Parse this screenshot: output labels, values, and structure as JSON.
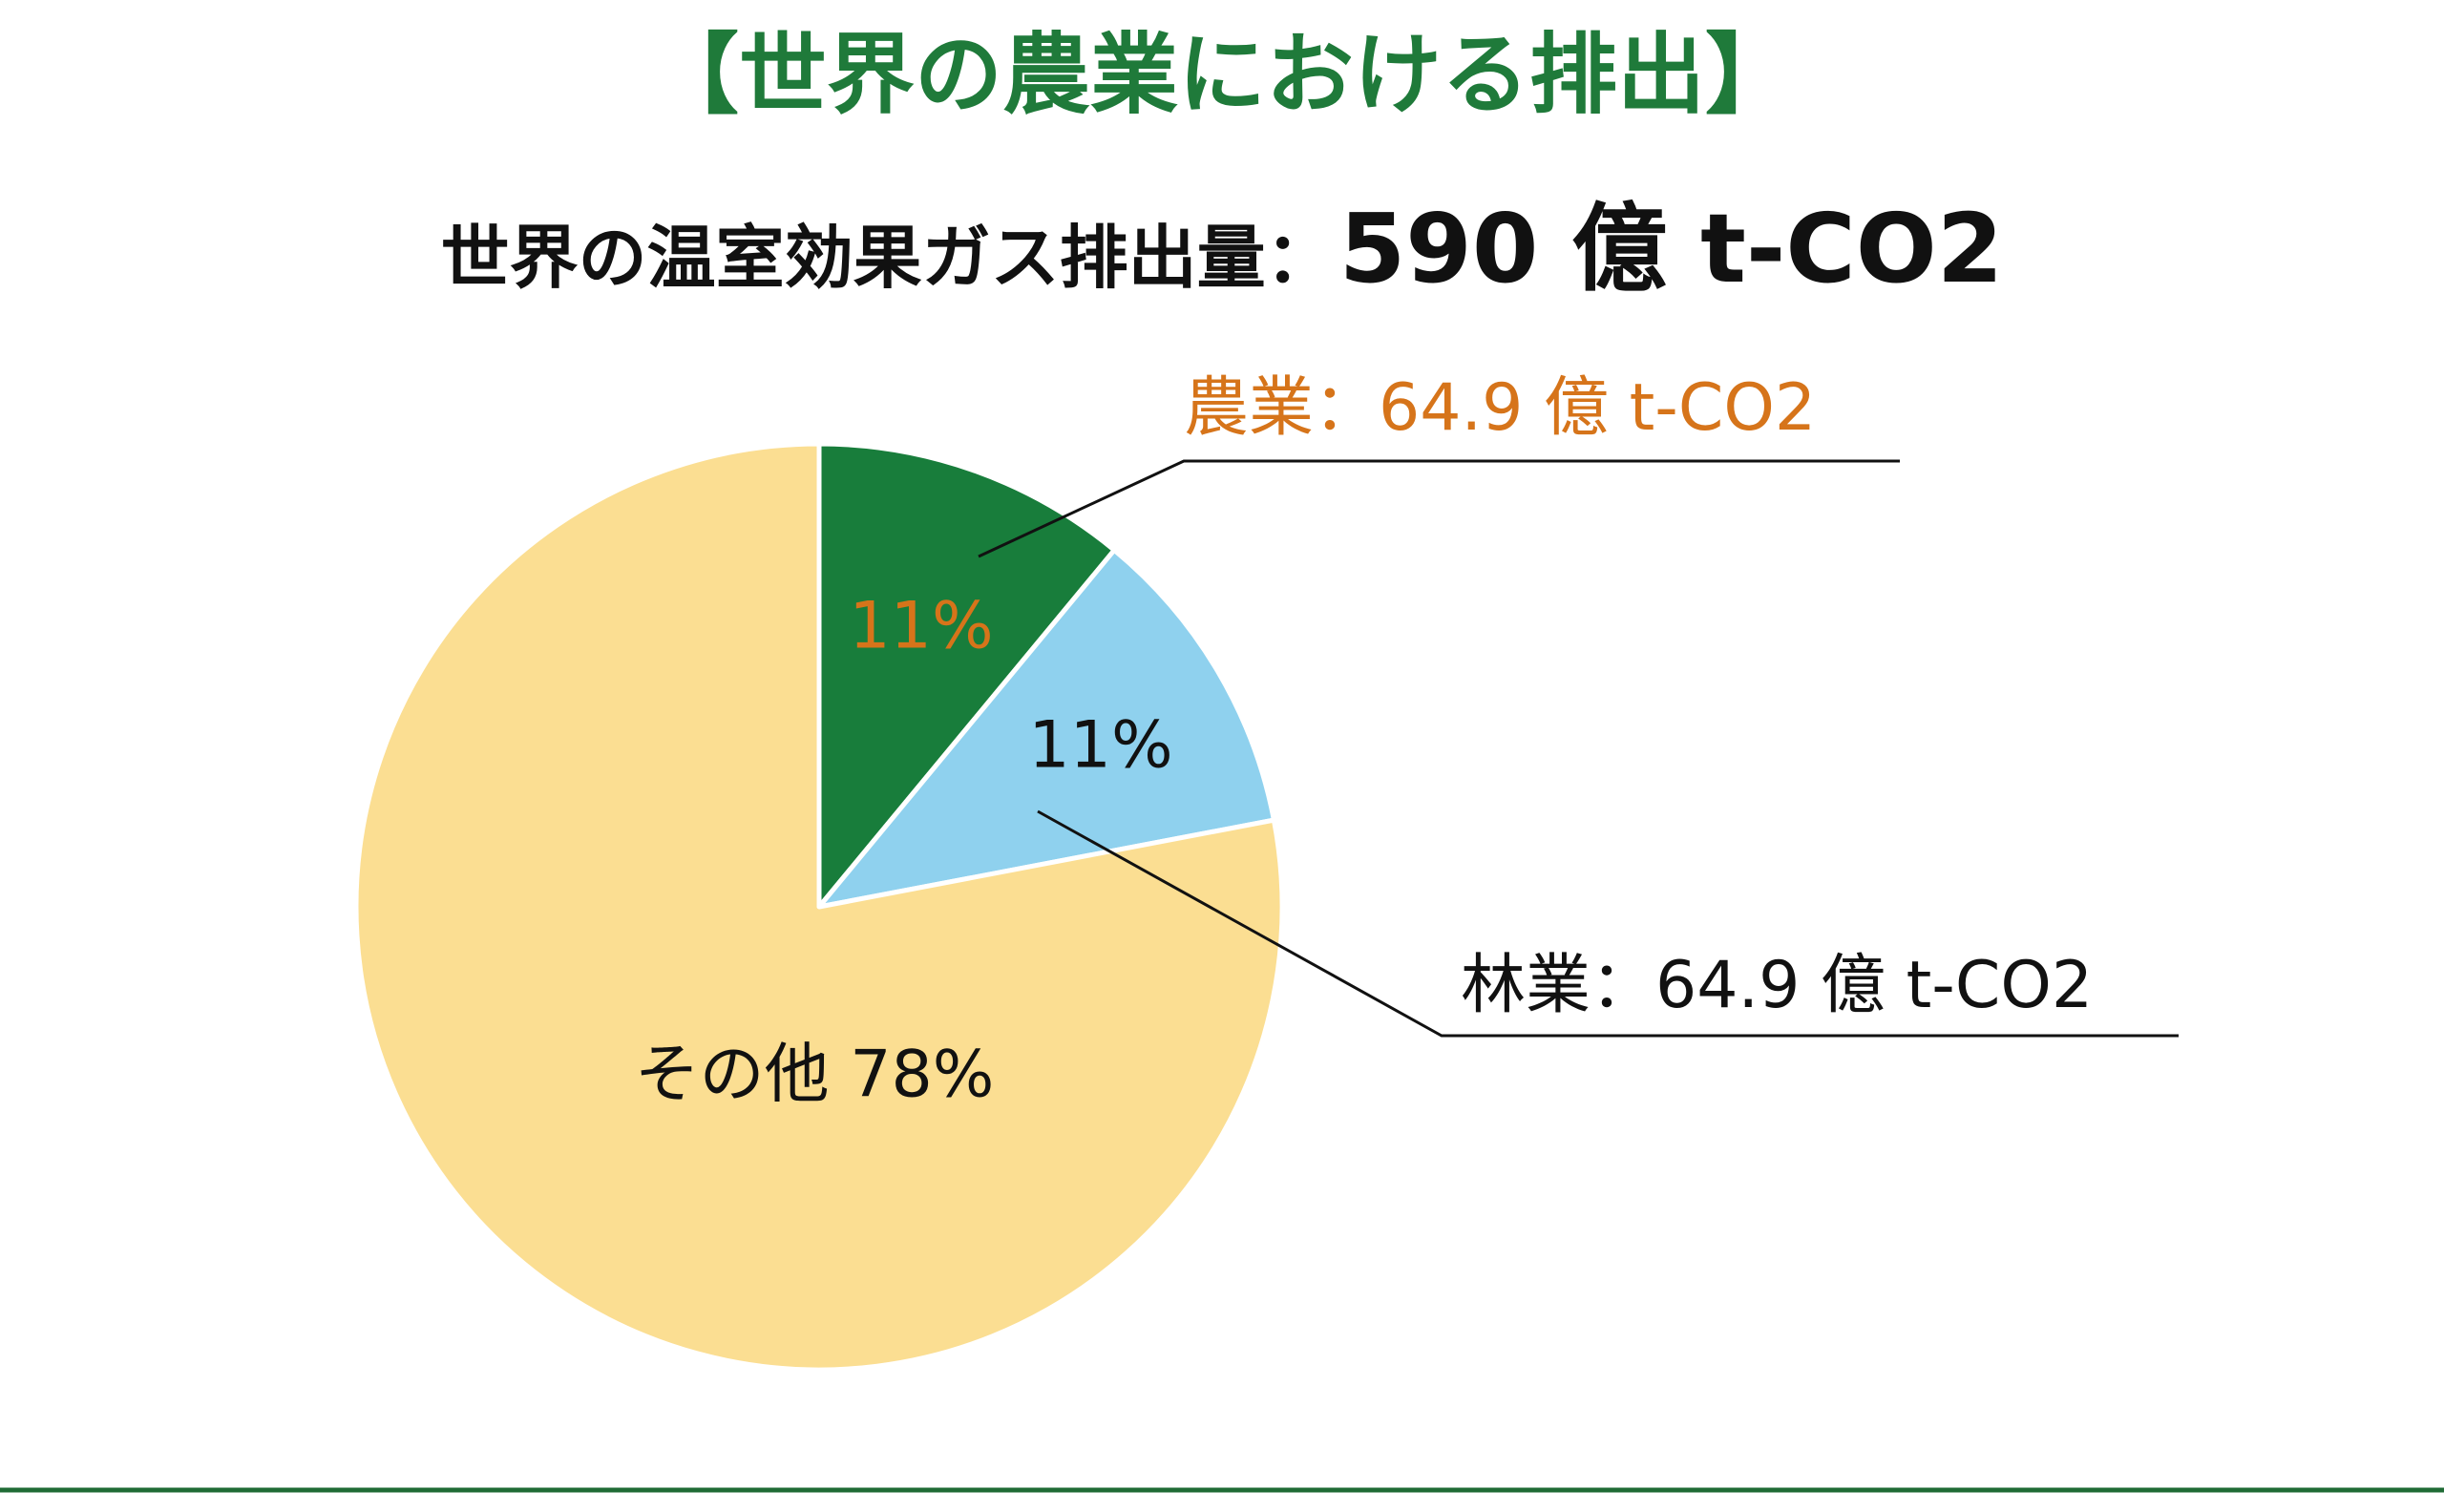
{
  "chart_data": {
    "type": "pie",
    "title": "【世界の農業における排出】",
    "subtitle": {
      "prefix": "世界の温室効果ガス排出量：",
      "value": "590 億 t-CO2"
    },
    "start_angle_deg": 0,
    "direction": "clockwise",
    "slices": [
      {
        "name": "農業",
        "value": 11,
        "percent_label": "11%",
        "callout": "農業：64.9 億 t-CO2",
        "color": "#187d3b",
        "text_color": "#d6741a"
      },
      {
        "name": "林業",
        "value": 11,
        "percent_label": "11%",
        "callout": "林業：64.9 億 t-CO2",
        "color": "#8fd1ee",
        "text_color": "#111111"
      },
      {
        "name": "その他",
        "value": 78,
        "percent_label": "その他 78%",
        "color": "#fbde92",
        "text_color": "#111111"
      }
    ]
  },
  "colors": {
    "title": "#1f7a3a",
    "rule": "#1f6b35",
    "slice_border": "#ffffff",
    "leader_line": "#111111"
  }
}
